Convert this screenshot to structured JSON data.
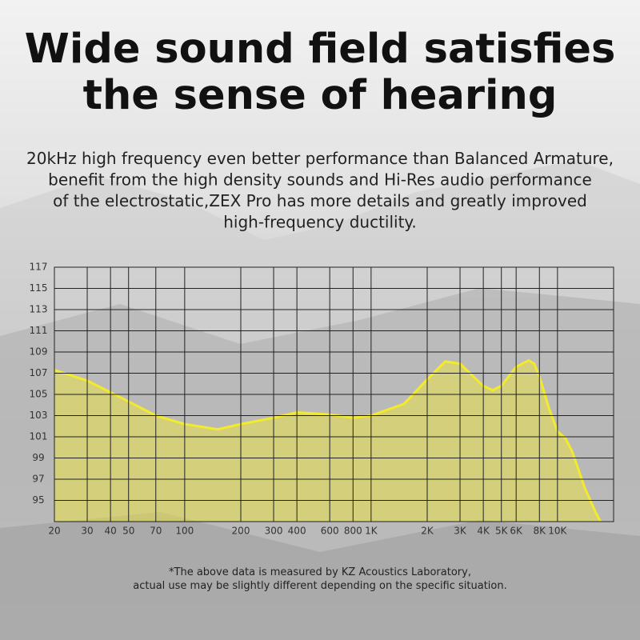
{
  "chart_data": {
    "type": "line",
    "title": [
      "Wide sound field satisfies",
      "the sense of hearing"
    ],
    "subtitle": [
      "20kHz high frequency even better performance than Balanced Armature,",
      "benefit from the high density sounds and Hi-Res audio performance",
      "of the electrostatic,ZEX Pro has more details and greatly improved",
      "high-frequency ductility."
    ],
    "note": [
      "*The above data is measured by KZ Acoustics Laboratory,",
      "actual use may be slightly different depending on the specific situation."
    ],
    "x": [
      20,
      30,
      40,
      70,
      100,
      150,
      200,
      300,
      400,
      600,
      800,
      1000,
      1500,
      2000,
      2500,
      3000,
      4000,
      4500,
      5000,
      6000,
      7000,
      7500,
      8000,
      9000,
      10000,
      11000,
      12000,
      14000,
      16000,
      17000
    ],
    "values": [
      107.3,
      106.3,
      105.2,
      103.0,
      102.2,
      101.7,
      102.2,
      102.8,
      103.3,
      103.1,
      102.8,
      103.0,
      104.1,
      106.4,
      108.1,
      107.9,
      105.8,
      105.4,
      105.8,
      107.6,
      108.2,
      107.9,
      106.7,
      103.7,
      101.5,
      100.9,
      99.6,
      96.2,
      93.9,
      93
    ],
    "color": "#f3ea2e",
    "xscale": "log",
    "xlim": [
      20,
      20000
    ],
    "xticks": [
      20,
      30,
      40,
      50,
      70,
      100,
      200,
      300,
      400,
      600,
      800,
      {
        "value": 1000,
        "label": "1K"
      },
      {
        "value": 2000,
        "label": "2K"
      },
      {
        "value": 3000,
        "label": "3K"
      },
      {
        "value": 4000,
        "label": "4K"
      },
      {
        "value": 5000,
        "label": "5K"
      },
      {
        "value": 6000,
        "label": "6K"
      },
      {
        "value": 8000,
        "label": "8K"
      },
      {
        "value": 10000,
        "label": "10K"
      }
    ],
    "ylim": [
      93,
      117
    ],
    "yticks": [
      95,
      97,
      99,
      101,
      103,
      105,
      107,
      109,
      111,
      113,
      115,
      117
    ],
    "grid": true
  }
}
